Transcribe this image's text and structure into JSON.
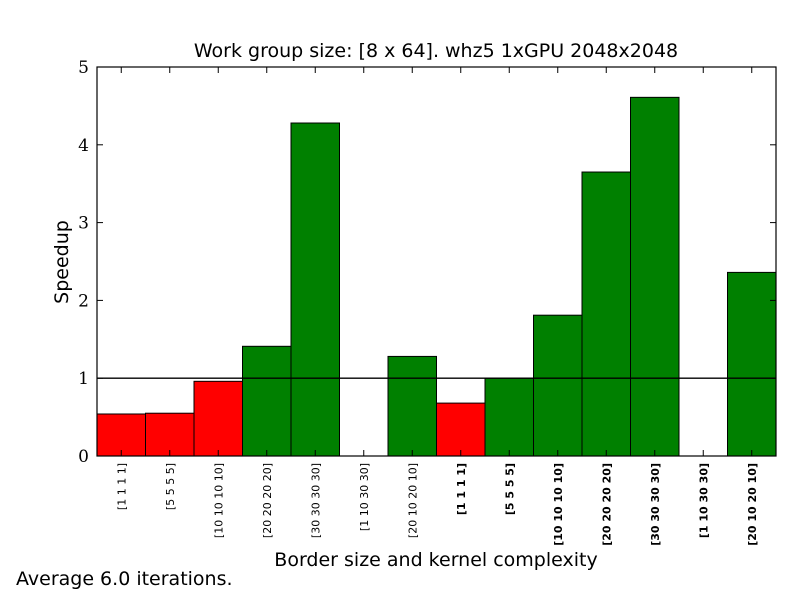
{
  "chart_data": {
    "type": "bar",
    "title": "Work group size: [8 x 64]. whz5 1xGPU 2048x2048",
    "xlabel": "Border size and kernel complexity",
    "ylabel": "Speedup",
    "ylim": [
      0,
      5
    ],
    "yticks": [
      "0",
      "1",
      "2",
      "3",
      "4",
      "5"
    ],
    "categories": [
      "[1 1 1 1]",
      "[5 5 5 5]",
      "[10 10 10 10]",
      "[20 20 20 20]",
      "[30 30 30 30]",
      "[1 10 30 30]",
      "[20 10 20 10]",
      "[1 1 1 1]",
      "[5 5 5 5]",
      "[10 10 10 10]",
      "[20 20 20 20]",
      "[30 30 30 30]",
      "[1 10 30 30]",
      "[20 10 20 10]"
    ],
    "bold_labels": [
      false,
      false,
      false,
      false,
      false,
      false,
      false,
      true,
      true,
      true,
      true,
      true,
      true,
      true
    ],
    "values": [
      0.54,
      0.55,
      0.96,
      1.41,
      4.28,
      0.0,
      1.28,
      0.68,
      1.0,
      1.81,
      3.65,
      4.61,
      0.0,
      2.36
    ],
    "reference_line": 1,
    "colors": {
      "above": "#008000",
      "below": "#ff0000",
      "axis": "#000000"
    },
    "legend": "none",
    "grid": false
  },
  "footnote": "Average 6.0 iterations."
}
